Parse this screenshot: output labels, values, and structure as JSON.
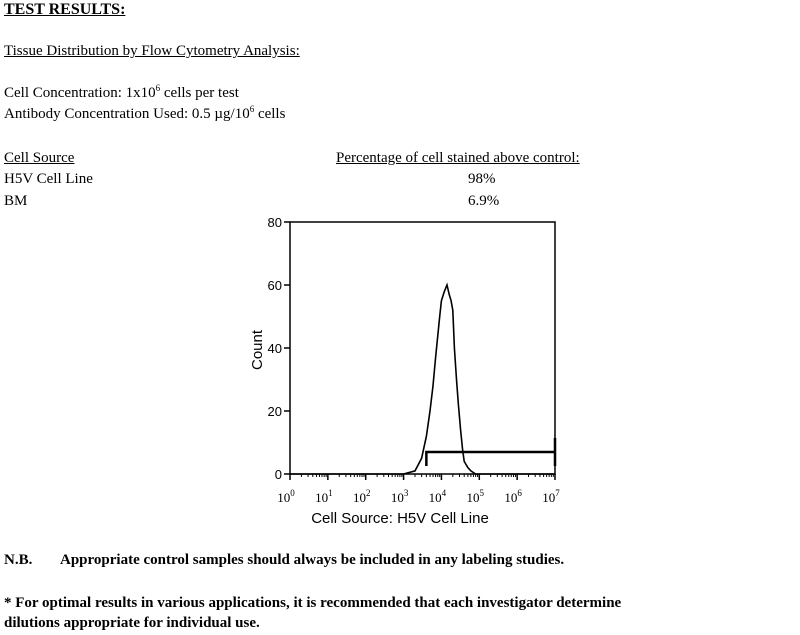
{
  "heading": "TEST RESULTS:",
  "subheading": "Tissue Distribution by Flow Cytometry Analysis:",
  "cell_concentration": {
    "prefix": "Cell Concentration: 1x10",
    "exp": "6",
    "suffix": " cells per test"
  },
  "antibody_concentration": {
    "prefix": "Antibody Concentration Used: 0.5 µg/10",
    "exp": "6",
    "suffix": " cells"
  },
  "table": {
    "col1_header": "Cell Source",
    "col2_header": "Percentage of cell stained above control:",
    "rows": [
      {
        "source": "H5V Cell Line",
        "percent": "98%"
      },
      {
        "source": "BM",
        "percent": "6.9%"
      }
    ]
  },
  "chart_data": {
    "type": "line",
    "xlabel": "Cell Source: H5V Cell Line",
    "ylabel": "Count",
    "x_scale": "log",
    "xlim": [
      1,
      10000000
    ],
    "ylim": [
      0,
      80
    ],
    "y_ticks": [
      "0",
      "20",
      "40",
      "60",
      "80"
    ],
    "x_ticks": [
      {
        "base": "10",
        "exp": "0"
      },
      {
        "base": "10",
        "exp": "1"
      },
      {
        "base": "10",
        "exp": "2"
      },
      {
        "base": "10",
        "exp": "3"
      },
      {
        "base": "10",
        "exp": "4"
      },
      {
        "base": "10",
        "exp": "5"
      },
      {
        "base": "10",
        "exp": "6"
      },
      {
        "base": "10",
        "exp": "7"
      }
    ],
    "series": [
      {
        "x": [
          1,
          100,
          1000,
          2000,
          3000,
          4000,
          5000,
          6000,
          7000,
          8000,
          9000,
          10000,
          12000,
          14000,
          16000,
          18000,
          20000,
          22000,
          25000,
          28000,
          32000,
          36000,
          40000,
          50000,
          60000,
          80000,
          100000,
          1000000,
          10000000
        ],
        "y": [
          0,
          0,
          0,
          1,
          5,
          12,
          20,
          28,
          37,
          44,
          50,
          55,
          58,
          60,
          57,
          55,
          52,
          40,
          30,
          22,
          14,
          8,
          4,
          2,
          1,
          0,
          0,
          0,
          0
        ]
      }
    ],
    "marker_gate": {
      "x_start": 4000,
      "x_end": 10000000,
      "y": 7
    }
  },
  "notes": {
    "nb_label": "N.B.",
    "nb_text": "Appropriate control samples should always be included in any labeling studies.",
    "optimal_line1": "* For optimal results in various applications, it is recommended that each investigator determine",
    "optimal_line2": "dilutions appropriate for individual use."
  }
}
